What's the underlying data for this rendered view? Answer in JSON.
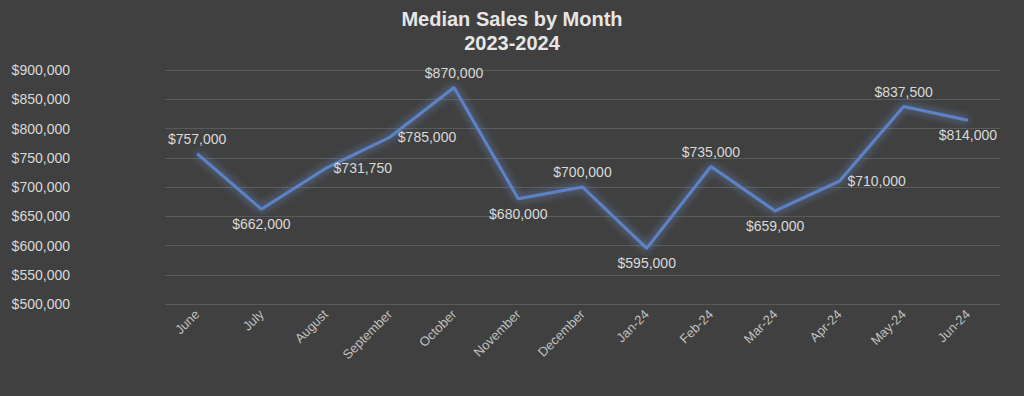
{
  "chart_data": {
    "type": "line",
    "title": "Median Sales by Month",
    "subtitle": "2023-2024",
    "categories": [
      "June",
      "July",
      "August",
      "September",
      "October",
      "November",
      "December",
      "Jan-24",
      "Feb-24",
      "Mar-24",
      "Apr-24",
      "May-24",
      "Jun-24"
    ],
    "values": [
      757000,
      662000,
      731750,
      785000,
      870000,
      680000,
      700000,
      595000,
      735000,
      659000,
      710000,
      837500,
      814000
    ],
    "value_labels": [
      "$757,000",
      "$662,000",
      "$731,750",
      "$785,000",
      "$870,000",
      "$680,000",
      "$700,000",
      "$595,000",
      "$735,000",
      "$659,000",
      "$710,000",
      "$837,500",
      "$814,000"
    ],
    "color": "#5b82c8",
    "ylim": [
      500000,
      900000
    ],
    "yticks": [
      {
        "value": 500000,
        "label": "$500,000"
      },
      {
        "value": 550000,
        "label": "$550,000"
      },
      {
        "value": 600000,
        "label": "$600,000"
      },
      {
        "value": 650000,
        "label": "$650,000"
      },
      {
        "value": 700000,
        "label": "$700,000"
      },
      {
        "value": 750000,
        "label": "$750,000"
      },
      {
        "value": 800000,
        "label": "$800,000"
      },
      {
        "value": 850000,
        "label": "$850,000"
      },
      {
        "value": 900000,
        "label": "$900,000"
      }
    ],
    "grid": true,
    "data_labels": true
  }
}
